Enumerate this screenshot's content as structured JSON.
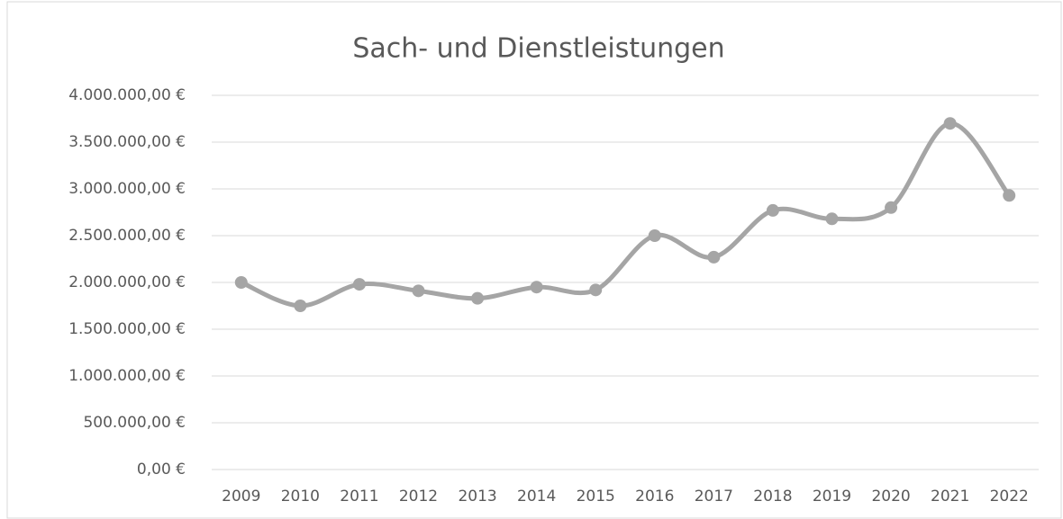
{
  "chart_data": {
    "type": "line",
    "title": "Sach- und Dienstleistungen",
    "categories": [
      "2009",
      "2010",
      "2011",
      "2012",
      "2013",
      "2014",
      "2015",
      "2016",
      "2017",
      "2018",
      "2019",
      "2020",
      "2021",
      "2022"
    ],
    "series": [
      {
        "name": "Sach- und Dienstleistungen",
        "color": "#a5a5a5",
        "values": [
          2000000,
          1750000,
          1980000,
          1910000,
          1830000,
          1950000,
          1920000,
          2500000,
          2270000,
          2770000,
          2680000,
          2800000,
          3700000,
          2930000
        ]
      }
    ],
    "smooth": true,
    "ylim": [
      0,
      4000000
    ],
    "yticks": [
      {
        "value": 0,
        "label": "0,00 €"
      },
      {
        "value": 500000,
        "label": "500.000,00 €"
      },
      {
        "value": 1000000,
        "label": "1.000.000,00 €"
      },
      {
        "value": 1500000,
        "label": "1.500.000,00 €"
      },
      {
        "value": 2000000,
        "label": "2.000.000,00 €"
      },
      {
        "value": 2500000,
        "label": "2.500.000,00 €"
      },
      {
        "value": 3000000,
        "label": "3.000.000,00 €"
      },
      {
        "value": 3500000,
        "label": "3.500.000,00 €"
      },
      {
        "value": 4000000,
        "label": "4.000.000,00 €"
      }
    ],
    "grid": true
  }
}
